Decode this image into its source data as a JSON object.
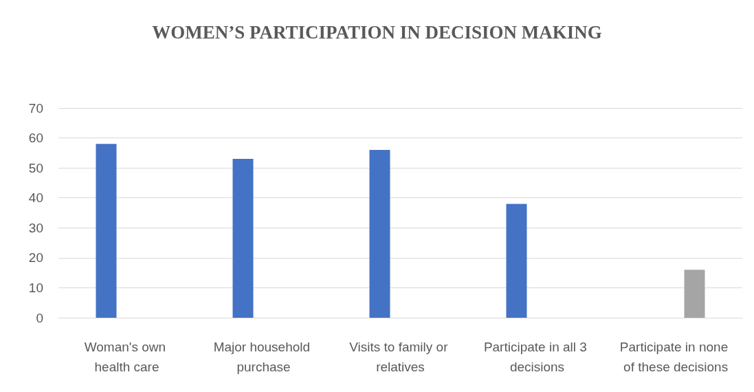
{
  "chart_data": {
    "type": "bar",
    "title": "WOMEN’S PARTICIPATION IN DECISION MAKING",
    "categories": [
      "Woman's own health care",
      "Major household purchase",
      "Visits to family or relatives",
      "Participate in all 3 decisions",
      "Participate in none of these decisions"
    ],
    "series": [
      {
        "color": "#4472c4",
        "values": [
          58,
          53,
          56,
          38,
          null
        ]
      },
      {
        "color": "#a5a5a5",
        "values": [
          null,
          null,
          null,
          null,
          16
        ]
      }
    ],
    "ylim": [
      0,
      70
    ],
    "yticks": [
      0,
      10,
      20,
      30,
      40,
      50,
      60,
      70
    ],
    "grid": "y"
  }
}
